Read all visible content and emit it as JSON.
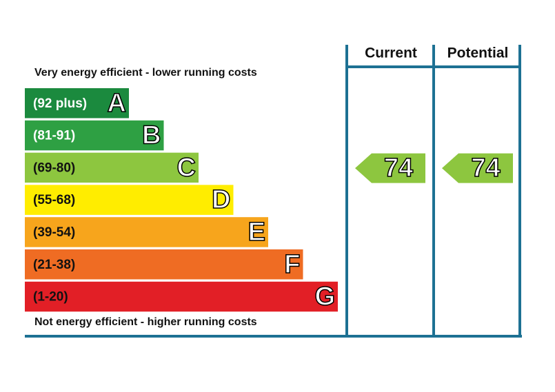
{
  "header": {
    "top_label": "Very energy efficient - lower running costs",
    "bottom_label": "Not energy efficient - higher running costs",
    "columns": [
      "Current",
      "Potential"
    ]
  },
  "bands": [
    {
      "range": "(92 plus)",
      "letter": "A",
      "color": "#1b8a3e",
      "text_color": "#ffffff"
    },
    {
      "range": "(81-91)",
      "letter": "B",
      "color": "#2ea043",
      "text_color": "#ffffff"
    },
    {
      "range": "(69-80)",
      "letter": "C",
      "color": "#8dc63f",
      "text_color": "#111111"
    },
    {
      "range": "(55-68)",
      "letter": "D",
      "color": "#ffed00",
      "text_color": "#111111"
    },
    {
      "range": "(39-54)",
      "letter": "E",
      "color": "#f7a51c",
      "text_color": "#111111"
    },
    {
      "range": "(21-38)",
      "letter": "F",
      "color": "#ef6c23",
      "text_color": "#111111"
    },
    {
      "range": "(1-20)",
      "letter": "G",
      "color": "#e21f26",
      "text_color": "#111111"
    }
  ],
  "ratings": [
    {
      "value": 74,
      "band": 2
    },
    {
      "value": 74,
      "band": 2
    }
  ],
  "frame_color": "#1d7193"
}
